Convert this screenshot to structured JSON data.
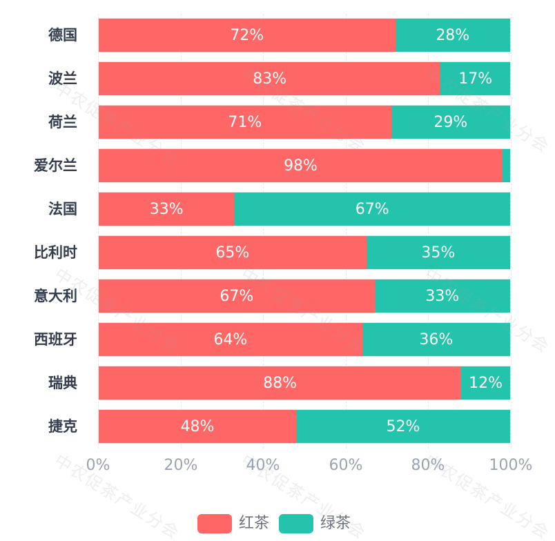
{
  "chart_data": {
    "type": "bar",
    "orientation": "horizontal",
    "stacked": "percent",
    "title": "",
    "xlabel": "",
    "ylabel": "",
    "xlim": [
      0,
      100
    ],
    "x_ticks": [
      "0%",
      "20%",
      "40%",
      "60%",
      "80%",
      "100%"
    ],
    "grid": "vertical dashed",
    "legend_position": "bottom",
    "categories": [
      "德国",
      "波兰",
      "荷兰",
      "爱尔兰",
      "法国",
      "比利时",
      "意大利",
      "西班牙",
      "瑞典",
      "捷克"
    ],
    "series": [
      {
        "name": "红茶",
        "color": "#ff6666",
        "values": [
          72,
          83,
          71,
          98,
          33,
          65,
          67,
          64,
          88,
          48
        ],
        "labels": [
          "72%",
          "83%",
          "71%",
          "98%",
          "33%",
          "65%",
          "67%",
          "64%",
          "88%",
          "48%"
        ]
      },
      {
        "name": "绿茶",
        "color": "#24c4ac",
        "values": [
          28,
          17,
          29,
          2,
          67,
          35,
          33,
          36,
          12,
          52
        ],
        "labels": [
          "28%",
          "17%",
          "29%",
          "",
          "67%",
          "35%",
          "33%",
          "36%",
          "12%",
          "52%"
        ]
      }
    ]
  },
  "legend": [
    {
      "label": "红茶",
      "color": "#ff6666"
    },
    {
      "label": "绿茶",
      "color": "#24c4ac"
    }
  ],
  "watermark": "中农促茶产业分会"
}
